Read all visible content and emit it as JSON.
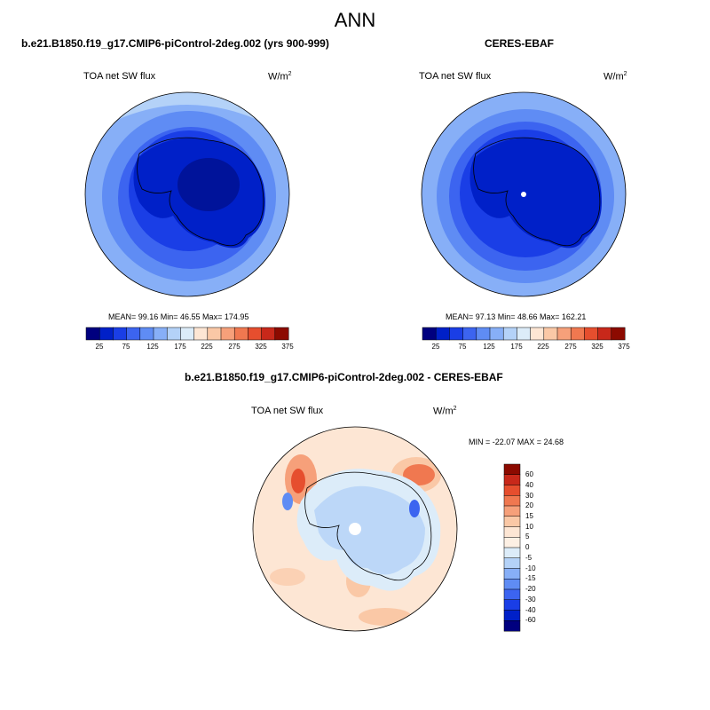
{
  "figure": {
    "title": "ANN",
    "panels": [
      {
        "title": "b.e21.B1850.f19_g17.CMIP6-piControl-2deg.002 (yrs 900-999)",
        "variable": "TOA net SW flux",
        "units": "W/m",
        "units_exp": "2",
        "stats": "MEAN=  99.16  Min=  46.55  Max= 174.95"
      },
      {
        "title": "CERES-EBAF",
        "variable": "TOA net SW flux",
        "units": "W/m",
        "units_exp": "2",
        "stats": "MEAN=  97.13  Min=  48.66  Max= 162.21"
      },
      {
        "title": "b.e21.B1850.f19_g17.CMIP6-piControl-2deg.002 - CERES-EBAF",
        "variable": "TOA net SW flux",
        "units": "W/m",
        "units_exp": "2",
        "stats": "MIN = -22.07 MAX =  24.68"
      }
    ],
    "abs_colorbar": {
      "ticks": [
        "25",
        "75",
        "125",
        "175",
        "225",
        "275",
        "325",
        "375"
      ],
      "colors": [
        "#00007f",
        "#0020c8",
        "#1a3ee6",
        "#3c64f0",
        "#5f8cf4",
        "#87aff7",
        "#b4d2f8",
        "#dcecf9",
        "#fde6d4",
        "#fac8a6",
        "#f6a07a",
        "#f07850",
        "#e64e2e",
        "#c8281a",
        "#8c0a00"
      ]
    },
    "diff_colorbar": {
      "ticks": [
        "60",
        "40",
        "30",
        "20",
        "15",
        "10",
        "5",
        "0",
        "-5",
        "-10",
        "-15",
        "-20",
        "-30",
        "-40",
        "-60"
      ],
      "colors_top_to_bottom": [
        "#8c0a00",
        "#c8281a",
        "#e64e2e",
        "#f07850",
        "#f6a07a",
        "#fac8a6",
        "#fde6d4",
        "#fdf0e4",
        "#dcecf9",
        "#b4d2f8",
        "#87aff7",
        "#5f8cf4",
        "#3c64f0",
        "#1a3ee6",
        "#0020c8",
        "#00007f"
      ]
    }
  }
}
